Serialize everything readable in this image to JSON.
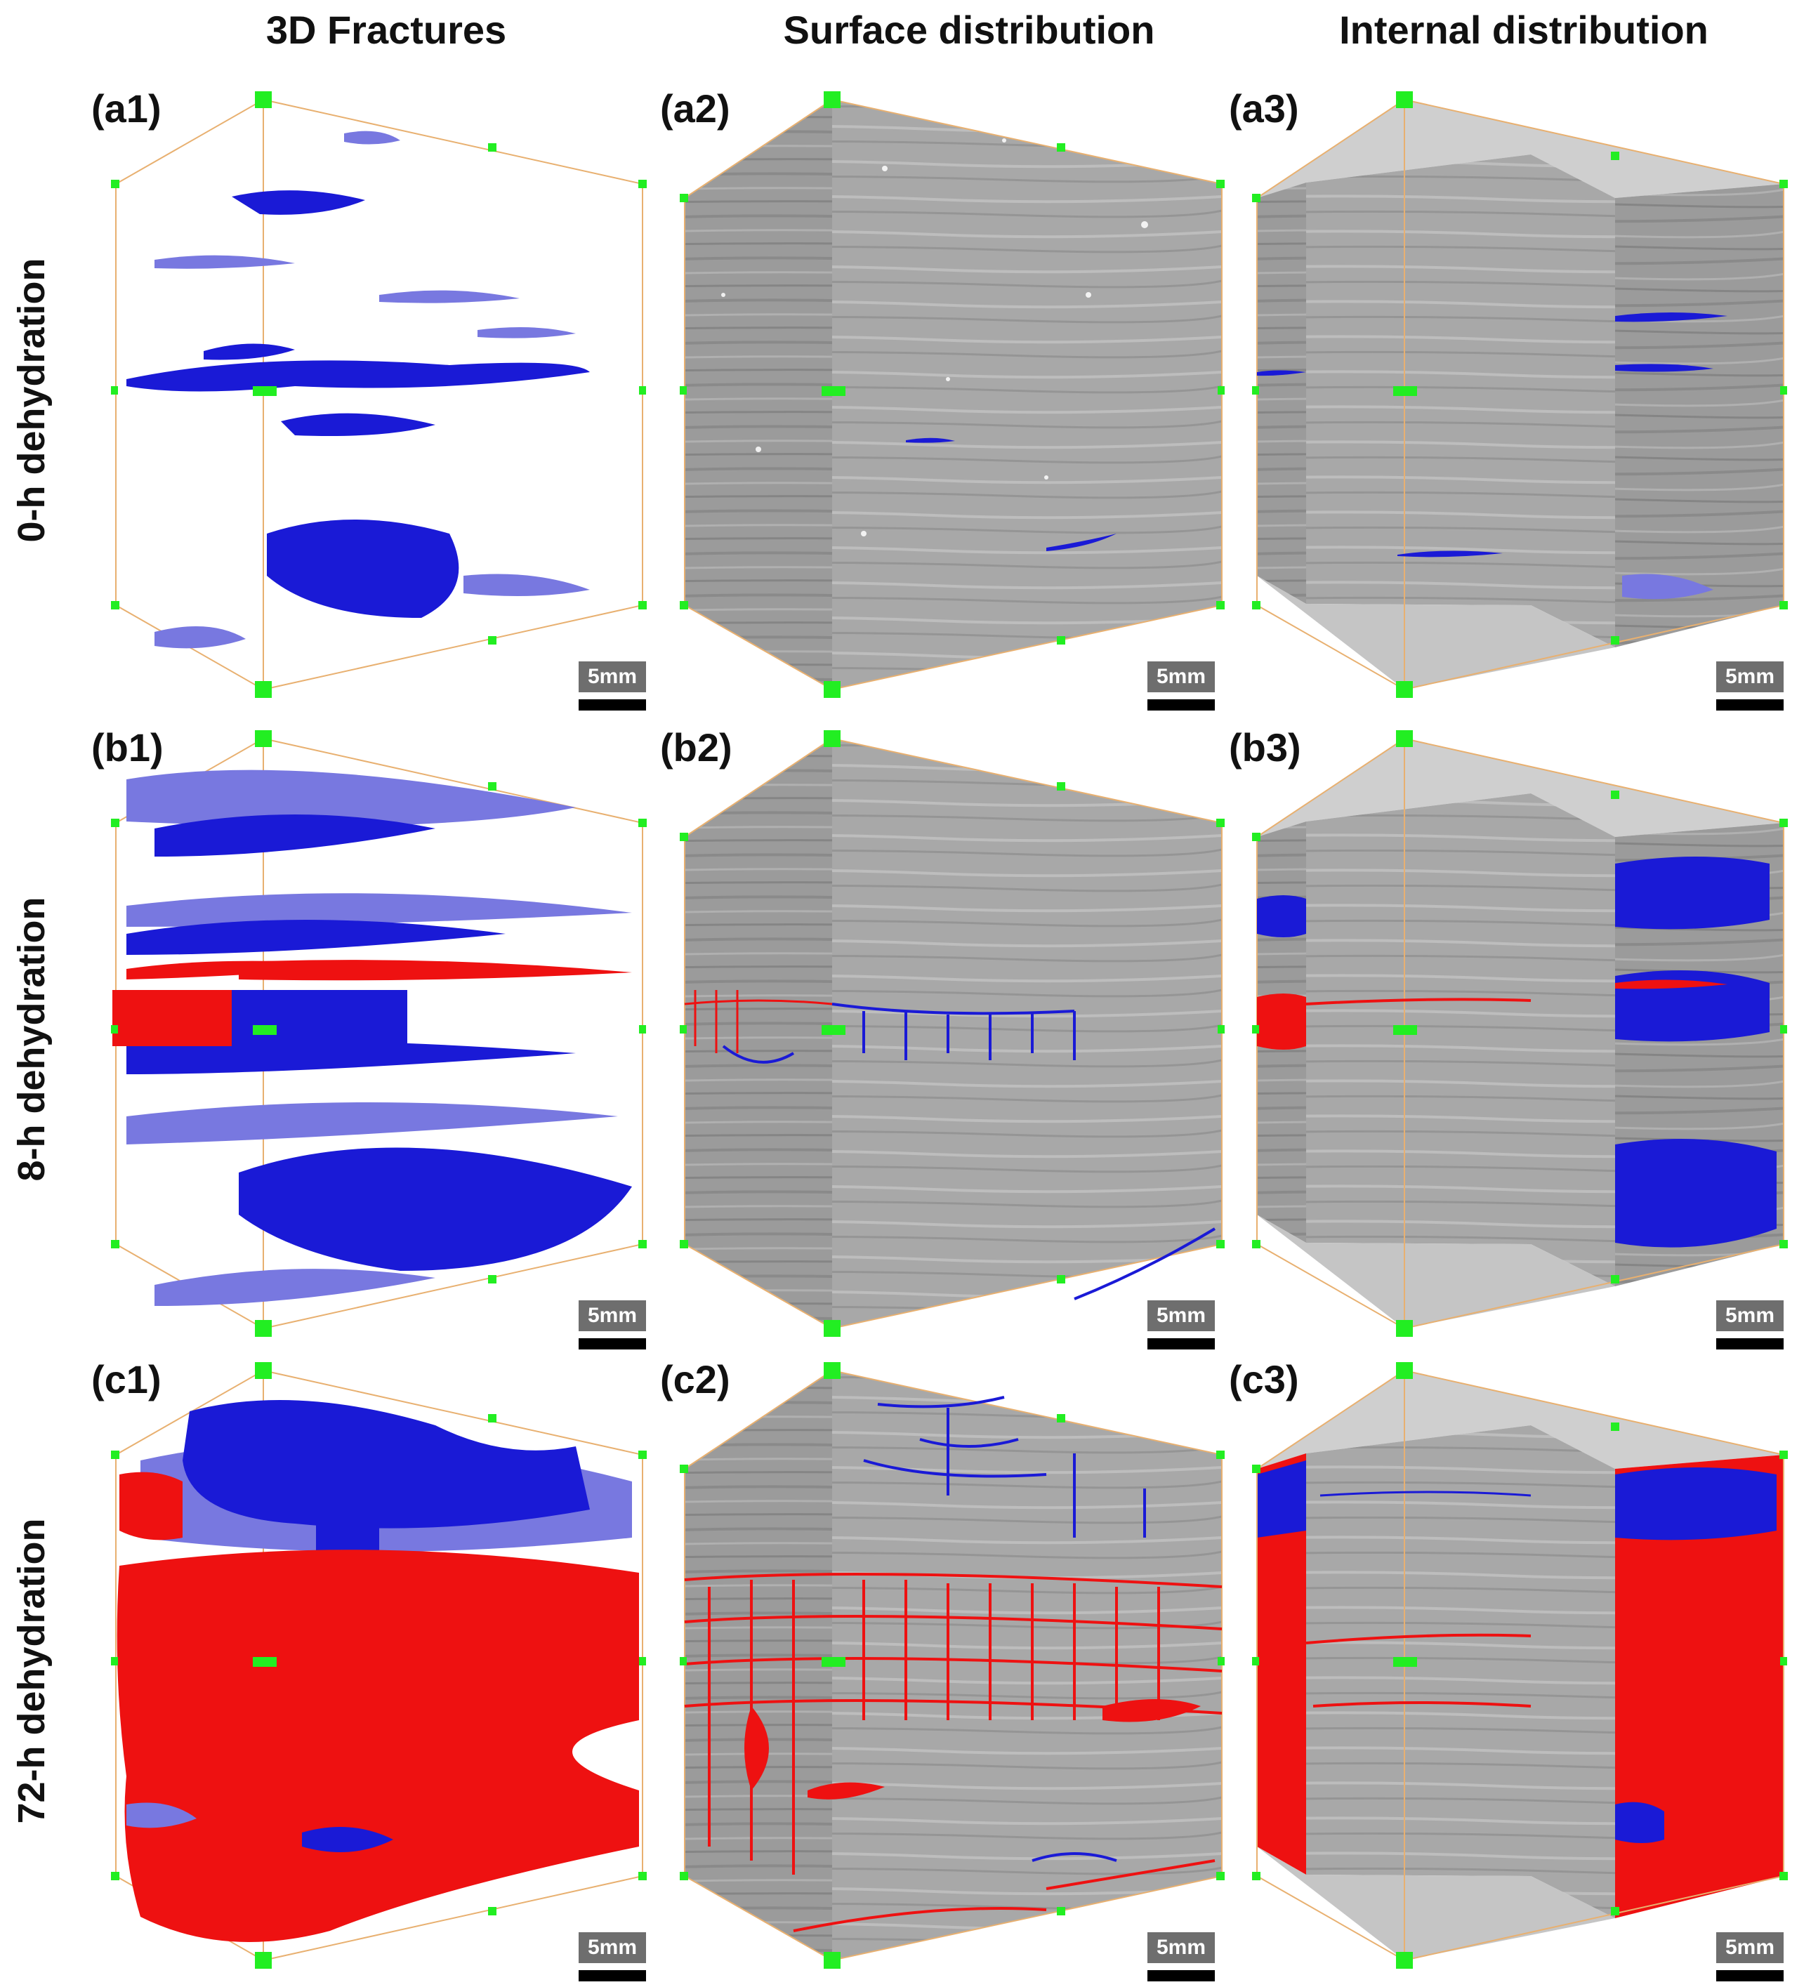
{
  "columns": {
    "c1": "3D Fractures",
    "c2": "Surface distribution",
    "c3": "Internal distribution"
  },
  "rows": {
    "r1": "0-h dehydration",
    "r2": "8-h dehydration",
    "r3": "72-h dehydration"
  },
  "panels": {
    "a1": "(a1)",
    "a2": "(a2)",
    "a3": "(a3)",
    "b1": "(b1)",
    "b2": "(b2)",
    "b3": "(b3)",
    "c1": "(c1)",
    "c2": "(c2)",
    "c3": "(c3)"
  },
  "scale_bar": "5mm",
  "colors": {
    "fracture_blue": "#1a1ad6",
    "fracture_light_blue": "#7878e0",
    "fracture_red": "#ee1111",
    "rock_gray": "#9a9a9a",
    "marker_green": "#22ee22",
    "box_edge": "#e8b070"
  }
}
